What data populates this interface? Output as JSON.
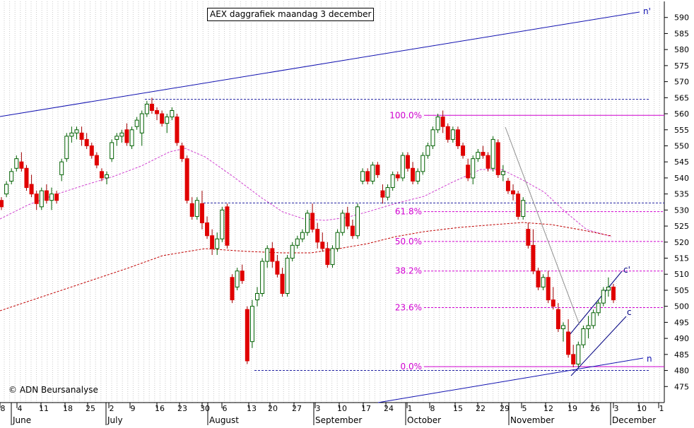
{
  "chart_data": {
    "type": "candlestick",
    "title": "AEX daggrafiek maandag 3 december",
    "copyright": "© ADN Beursanalyse",
    "y_range": [
      470,
      595
    ],
    "y_ticks": [
      475,
      480,
      485,
      490,
      495,
      500,
      505,
      510,
      515,
      520,
      525,
      530,
      535,
      540,
      545,
      550,
      555,
      560,
      565,
      570,
      575,
      580,
      585,
      590
    ],
    "x_day_ticks": [
      "8",
      "4",
      "11",
      "18",
      "25",
      "2",
      "9",
      "16",
      "23",
      "30",
      "6",
      "13",
      "20",
      "27",
      "3",
      "10",
      "17",
      "24",
      "1",
      "8",
      "15",
      "22",
      "29",
      "5",
      "12",
      "19",
      "26",
      "3",
      "10",
      "1"
    ],
    "x_month_labels": [
      "June",
      "July",
      "August",
      "September",
      "October",
      "November",
      "December"
    ],
    "fibonacci": [
      {
        "label": "100.0%",
        "value": 559.5
      },
      {
        "label": "61.8%",
        "value": 529.5
      },
      {
        "label": "50.0%",
        "value": 520.2
      },
      {
        "label": "38.2%",
        "value": 511.0
      },
      {
        "label": "23.6%",
        "value": 499.6
      },
      {
        "label": "0.0%",
        "value": 481.2
      }
    ],
    "trendline_labels": [
      "n'",
      "c'",
      "c",
      "n"
    ],
    "support_resistance": [
      564.5,
      532.2,
      480.0
    ],
    "series_candles": [
      [
        533,
        534,
        530,
        531
      ],
      [
        535,
        539,
        534,
        538
      ],
      [
        539,
        543,
        538,
        542
      ],
      [
        543,
        547,
        542,
        546
      ],
      [
        545,
        548,
        542,
        543
      ],
      [
        543,
        544,
        536,
        537
      ],
      [
        538,
        541,
        534,
        535
      ],
      [
        535,
        536,
        530,
        532
      ],
      [
        531,
        537,
        530,
        536
      ],
      [
        536,
        538,
        532,
        533
      ],
      [
        533,
        537,
        530,
        535
      ],
      [
        535,
        536,
        532,
        533
      ],
      [
        541,
        546,
        539,
        545
      ],
      [
        546,
        554,
        545,
        553
      ],
      [
        553,
        556,
        551,
        554
      ],
      [
        554,
        556,
        552,
        555
      ],
      [
        554,
        556,
        550,
        552
      ],
      [
        552,
        554,
        549,
        550
      ],
      [
        550,
        551,
        546,
        547
      ],
      [
        547,
        548,
        543,
        544
      ],
      [
        542,
        543,
        539,
        540
      ],
      [
        540,
        542,
        538,
        541
      ],
      [
        546,
        552,
        545,
        551
      ],
      [
        552,
        554,
        550,
        553
      ],
      [
        553,
        555,
        551,
        554
      ],
      [
        555,
        557,
        550,
        551
      ],
      [
        550,
        556,
        549,
        555
      ],
      [
        556,
        559,
        555,
        558
      ],
      [
        554,
        561,
        550,
        560
      ],
      [
        560,
        564,
        559,
        563
      ],
      [
        563,
        565,
        560,
        561
      ],
      [
        561,
        562,
        558,
        560
      ],
      [
        560,
        561,
        556,
        557
      ],
      [
        557,
        560,
        554,
        559
      ],
      [
        559,
        562,
        558,
        561
      ],
      [
        559,
        560,
        550,
        551
      ],
      [
        550,
        551,
        545,
        546
      ],
      [
        546,
        547,
        532,
        533
      ],
      [
        532,
        534,
        527,
        528
      ],
      [
        528,
        534,
        527,
        533
      ],
      [
        532,
        536,
        524,
        526
      ],
      [
        526,
        528,
        521,
        522
      ],
      [
        522,
        524,
        516,
        518
      ],
      [
        518,
        523,
        516,
        521
      ],
      [
        521,
        531,
        520,
        530
      ],
      [
        531,
        532,
        518,
        519
      ],
      [
        509,
        510,
        501,
        502
      ],
      [
        506,
        512,
        505,
        511
      ],
      [
        511,
        513,
        507,
        508
      ],
      [
        499,
        500,
        482,
        483
      ],
      [
        489,
        502,
        487,
        500
      ],
      [
        502,
        506,
        500,
        504
      ],
      [
        504,
        515,
        503,
        514
      ],
      [
        514,
        519,
        512,
        518
      ],
      [
        518,
        520,
        512,
        514
      ],
      [
        514,
        516,
        509,
        510
      ],
      [
        510,
        512,
        503,
        504
      ],
      [
        504,
        516,
        503,
        515
      ],
      [
        515,
        520,
        514,
        519
      ],
      [
        519,
        522,
        518,
        521
      ],
      [
        521,
        524,
        520,
        523
      ],
      [
        523,
        530,
        522,
        529
      ],
      [
        529,
        532,
        523,
        524
      ],
      [
        524,
        526,
        518,
        520
      ],
      [
        520,
        523,
        517,
        518
      ],
      [
        518,
        520,
        512,
        513
      ],
      [
        513,
        519,
        512,
        518
      ],
      [
        518,
        524,
        517,
        523
      ],
      [
        523,
        530,
        522,
        529
      ],
      [
        529,
        531,
        524,
        525
      ],
      [
        525,
        527,
        521,
        522
      ],
      [
        522,
        532,
        521,
        531
      ],
      [
        539,
        543,
        538,
        542
      ],
      [
        542,
        543,
        538,
        539
      ],
      [
        539,
        545,
        538,
        544
      ],
      [
        544,
        545,
        540,
        541
      ],
      [
        536,
        538,
        532,
        534
      ],
      [
        534,
        538,
        533,
        537
      ],
      [
        537,
        542,
        536,
        541
      ],
      [
        541,
        542,
        539,
        540
      ],
      [
        540,
        548,
        539,
        547
      ],
      [
        547,
        548,
        542,
        543
      ],
      [
        543,
        545,
        538,
        539
      ],
      [
        539,
        543,
        538,
        542
      ],
      [
        542,
        548,
        541,
        547
      ],
      [
        547,
        551,
        546,
        550
      ],
      [
        550,
        556,
        549,
        555
      ],
      [
        555,
        560,
        554,
        559
      ],
      [
        559,
        561,
        554,
        556
      ],
      [
        556,
        557,
        551,
        552
      ],
      [
        552,
        556,
        551,
        555
      ],
      [
        555,
        556,
        549,
        550
      ],
      [
        550,
        551,
        546,
        547
      ],
      [
        544,
        546,
        539,
        540
      ],
      [
        540,
        547,
        538,
        546
      ],
      [
        546,
        549,
        545,
        548
      ],
      [
        548,
        550,
        546,
        547
      ],
      [
        547,
        548,
        542,
        543
      ],
      [
        543,
        553,
        542,
        552
      ],
      [
        551,
        552,
        540,
        541
      ],
      [
        541,
        544,
        539,
        542
      ],
      [
        539,
        540,
        535,
        536
      ],
      [
        536,
        538,
        533,
        535
      ],
      [
        535,
        536,
        527,
        528
      ],
      [
        528,
        534,
        527,
        533
      ],
      [
        524,
        526,
        518,
        519
      ],
      [
        519,
        524,
        510,
        511
      ],
      [
        511,
        512,
        505,
        506
      ],
      [
        506,
        510,
        505,
        509
      ],
      [
        509,
        511,
        501,
        502
      ],
      [
        502,
        506,
        499,
        500
      ],
      [
        499,
        501,
        492,
        493
      ],
      [
        493,
        495,
        489,
        494
      ],
      [
        492,
        496,
        484,
        485
      ],
      [
        485,
        488,
        481,
        482
      ],
      [
        482,
        489,
        481,
        488
      ],
      [
        488,
        494,
        487,
        493
      ],
      [
        493,
        497,
        490,
        494
      ],
      [
        494,
        499,
        493,
        498
      ],
      [
        498,
        502,
        497,
        501
      ],
      [
        501,
        506,
        500,
        505
      ],
      [
        505,
        509,
        503,
        506
      ],
      [
        506,
        507,
        501,
        502
      ]
    ]
  }
}
